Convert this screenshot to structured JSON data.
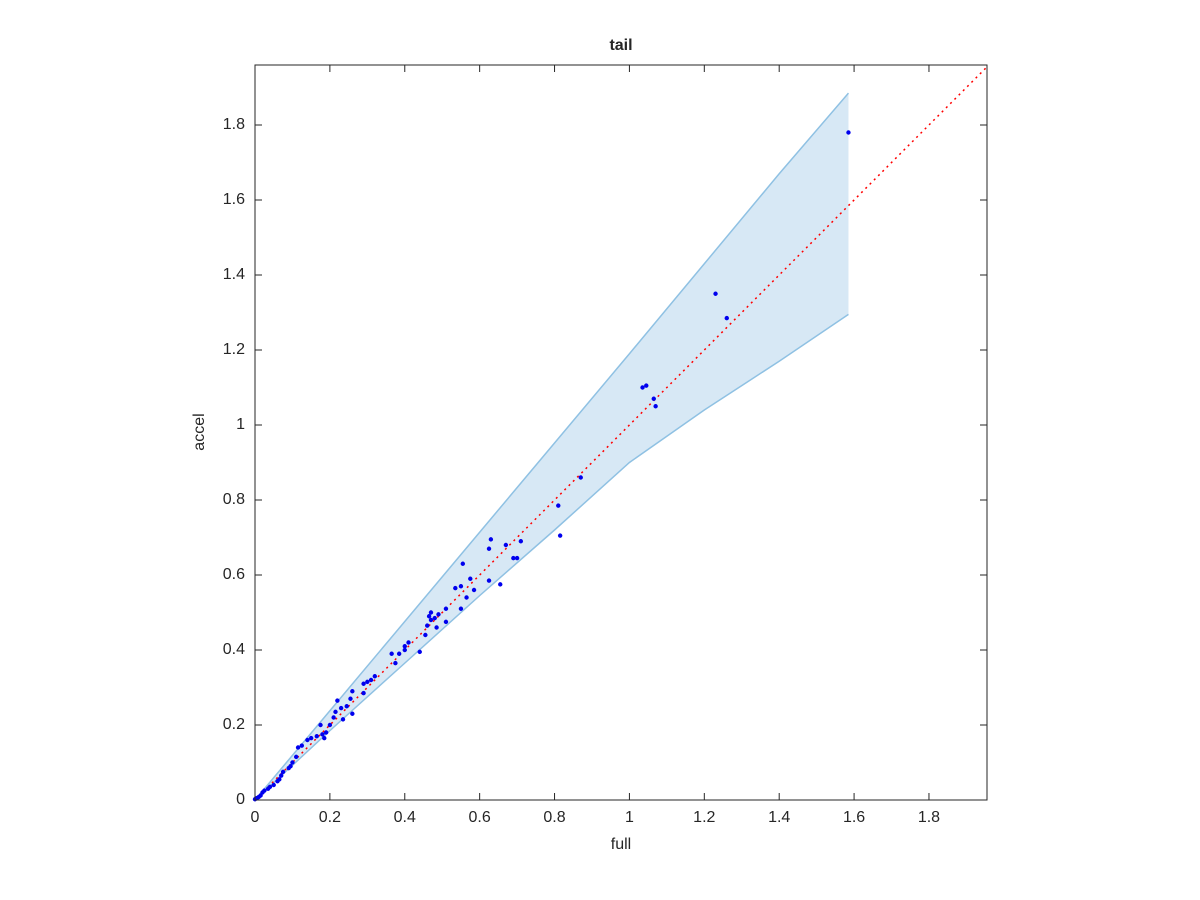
{
  "chart_data": {
    "type": "scatter",
    "title": "tail",
    "x_label": "full",
    "y_label": "accel",
    "xlim": [
      0,
      1.955
    ],
    "ylim": [
      0,
      1.96
    ],
    "xticks": [
      0,
      0.2,
      0.4,
      0.6,
      0.8,
      1,
      1.2,
      1.4,
      1.6,
      1.8
    ],
    "yticks": [
      0,
      0.2,
      0.4,
      0.6,
      0.8,
      1,
      1.2,
      1.4,
      1.6,
      1.8
    ],
    "grid": false,
    "band": {
      "color": "#d7e8f5",
      "edge_color": "#8fc1e3",
      "x": [
        0,
        0.2,
        0.4,
        0.6,
        0.8,
        1.0,
        1.2,
        1.4,
        1.585
      ],
      "upper": [
        0,
        0.238,
        0.476,
        0.714,
        0.952,
        1.19,
        1.43,
        1.67,
        1.885
      ],
      "lower": [
        0,
        0.185,
        0.365,
        0.545,
        0.72,
        0.9,
        1.04,
        1.17,
        1.295
      ]
    },
    "reference_line": {
      "color": "#ff0000",
      "x": [
        0,
        1.955
      ],
      "values": [
        0,
        1.955
      ]
    },
    "series": [
      {
        "color": "#0000ee",
        "x": [
          1.585,
          1.23,
          1.26,
          1.035,
          1.045,
          1.065,
          1.07,
          0.87,
          0.81,
          0.815,
          0.71,
          0.69,
          0.7,
          0.67,
          0.63,
          0.625,
          0.625,
          0.655,
          0.555,
          0.575,
          0.585,
          0.565,
          0.55,
          0.535,
          0.55,
          0.51,
          0.51,
          0.49,
          0.48,
          0.47,
          0.465,
          0.47,
          0.485,
          0.46,
          0.455,
          0.44,
          0.41,
          0.4,
          0.4,
          0.385,
          0.375,
          0.365,
          0.32,
          0.31,
          0.3,
          0.29,
          0.29,
          0.26,
          0.255,
          0.26,
          0.245,
          0.23,
          0.22,
          0.215,
          0.235,
          0.21,
          0.2,
          0.19,
          0.18,
          0.175,
          0.185,
          0.165,
          0.15,
          0.14,
          0.125,
          0.115,
          0.11,
          0.1,
          0.095,
          0.09,
          0.075,
          0.07,
          0.065,
          0.06,
          0.05,
          0.04,
          0.035,
          0.025,
          0.02,
          0.015,
          0.01,
          0.005,
          0.0
        ],
        "values": [
          1.78,
          1.35,
          1.285,
          1.1,
          1.105,
          1.07,
          1.05,
          0.86,
          0.785,
          0.705,
          0.69,
          0.645,
          0.645,
          0.68,
          0.695,
          0.67,
          0.585,
          0.575,
          0.63,
          0.59,
          0.56,
          0.54,
          0.57,
          0.565,
          0.51,
          0.475,
          0.51,
          0.495,
          0.485,
          0.5,
          0.49,
          0.48,
          0.46,
          0.465,
          0.44,
          0.395,
          0.42,
          0.41,
          0.4,
          0.39,
          0.365,
          0.39,
          0.33,
          0.32,
          0.315,
          0.31,
          0.285,
          0.29,
          0.27,
          0.23,
          0.25,
          0.245,
          0.265,
          0.235,
          0.215,
          0.22,
          0.2,
          0.18,
          0.175,
          0.2,
          0.165,
          0.17,
          0.165,
          0.16,
          0.145,
          0.14,
          0.115,
          0.1,
          0.09,
          0.085,
          0.075,
          0.065,
          0.055,
          0.05,
          0.04,
          0.035,
          0.03,
          0.025,
          0.02,
          0.012,
          0.008,
          0.005,
          0.002
        ]
      }
    ]
  }
}
